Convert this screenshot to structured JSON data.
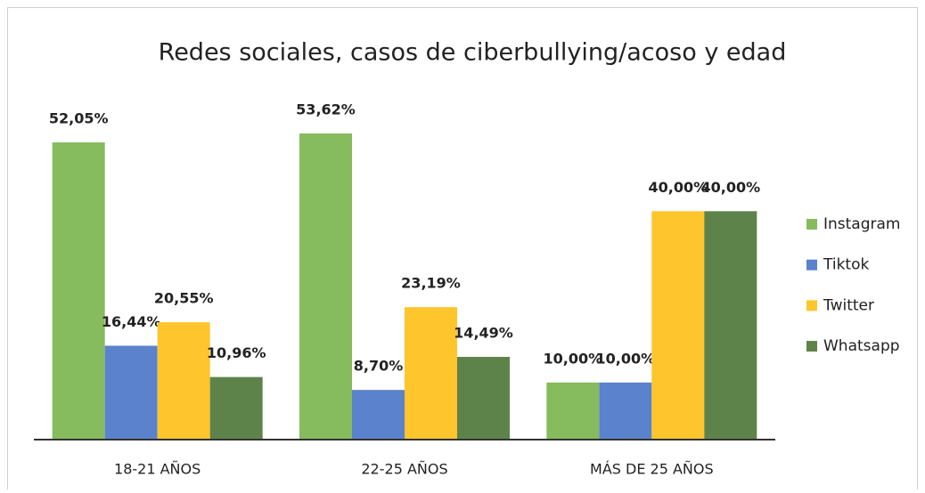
{
  "chart_data": {
    "type": "bar",
    "title": "Redes sociales, casos de ciberbullying/acoso  y edad",
    "categories": [
      "18-21 AÑOS",
      "22-25 AÑOS",
      "MÁS DE 25 AÑOS"
    ],
    "series": [
      {
        "name": "Instagram",
        "color": "#86bb5e",
        "values": [
          52.05,
          53.62,
          10.0
        ],
        "value_labels": [
          "52,05%",
          "53,62%",
          "10,00%"
        ]
      },
      {
        "name": "Tiktok",
        "color": "#5b82cc",
        "values": [
          16.44,
          8.7,
          10.0
        ],
        "value_labels": [
          "16,44%",
          "8,70%",
          "10,00%"
        ]
      },
      {
        "name": "Twitter",
        "color": "#fec52c",
        "values": [
          20.55,
          23.19,
          40.0
        ],
        "value_labels": [
          "20,55%",
          "23,19%",
          "40,00%"
        ]
      },
      {
        "name": "Whatsapp",
        "color": "#5e834a",
        "values": [
          10.96,
          14.49,
          40.0
        ],
        "value_labels": [
          "10,96%",
          "14,49%",
          "40,00%"
        ]
      }
    ],
    "ylim": [
      0,
      60
    ],
    "legend": "right"
  }
}
